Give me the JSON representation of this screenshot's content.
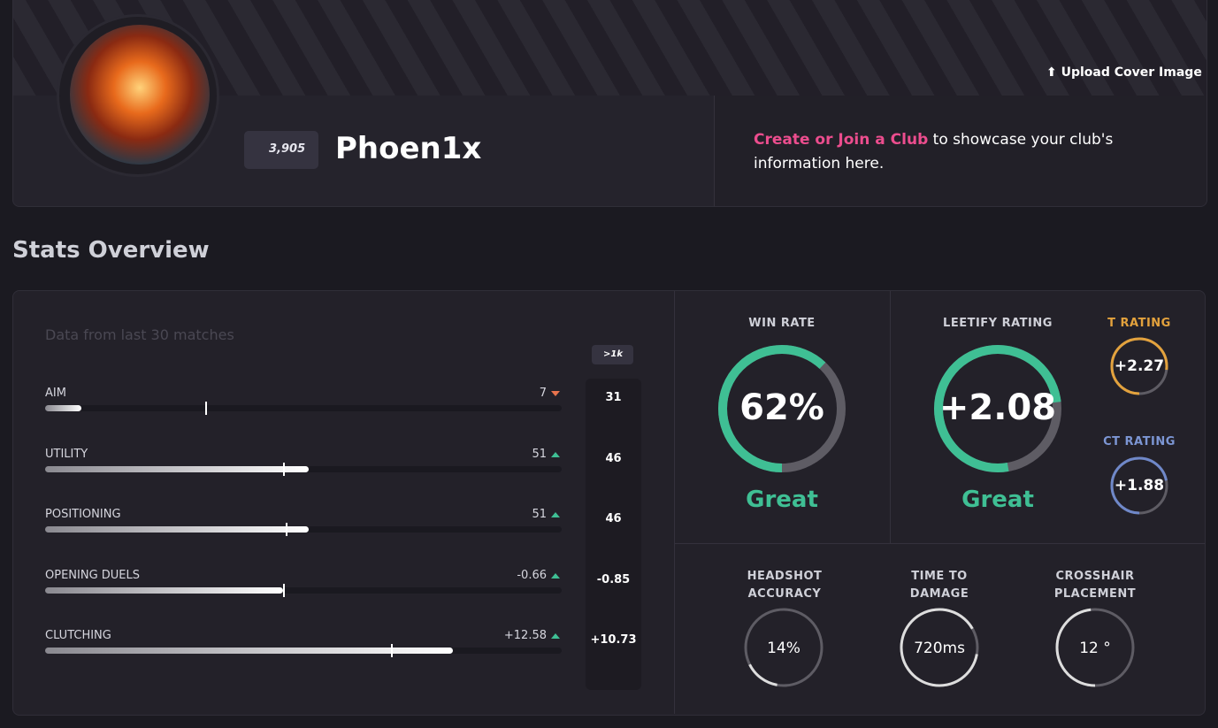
{
  "profile": {
    "upload": "Upload Cover Image",
    "elo": "3,905",
    "name": "Phoen1x",
    "club_link": "Create or Join a Club",
    "club_text": " to showcase your club's information here."
  },
  "stats": {
    "title": "Stats Overview",
    "subtitle": "Data from last 30 matches",
    "rank_badge": ">1k",
    "rows": [
      {
        "label": "AIM",
        "value": "7",
        "trend": "down",
        "compare": "31"
      },
      {
        "label": "UTILITY",
        "value": "51",
        "trend": "up",
        "compare": "46"
      },
      {
        "label": "POSITIONING",
        "value": "51",
        "trend": "up",
        "compare": "46"
      },
      {
        "label": "OPENING DUELS",
        "value": "-0.66",
        "trend": "up",
        "compare": "-0.85"
      },
      {
        "label": "CLUTCHING",
        "value": "+12.58",
        "trend": "up",
        "compare": "+10.73"
      }
    ],
    "win_rate": {
      "label": "WIN RATE",
      "value": "62%",
      "verdict": "Great"
    },
    "leetify_rating": {
      "label": "LEETIFY RATING",
      "value": "+2.08",
      "verdict": "Great"
    },
    "t_rating": {
      "label": "T RATING",
      "value": "+2.27"
    },
    "ct_rating": {
      "label": "CT RATING",
      "value": "+1.88"
    },
    "headshot": {
      "label": [
        "HEADSHOT",
        "ACCURACY"
      ],
      "value": "14%"
    },
    "time_to_damage": {
      "label": [
        "TIME TO",
        "DAMAGE"
      ],
      "value": "720ms"
    },
    "crosshair": {
      "label": [
        "CROSSHAIR",
        "PLACEMENT"
      ],
      "value": "12 °"
    }
  }
}
